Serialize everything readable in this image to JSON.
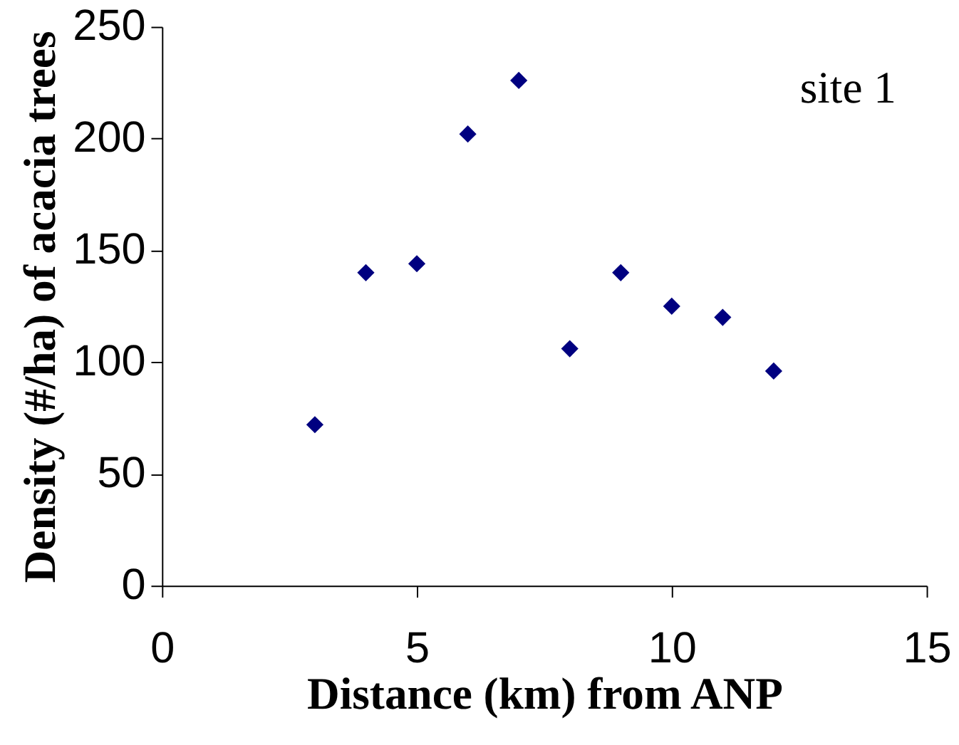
{
  "chart_data": {
    "type": "scatter",
    "xlabel": "Distance (km) from ANP",
    "ylabel": "Density (#/ha) of acacia trees",
    "annotations": [
      "site 1"
    ],
    "x": [
      3,
      4,
      5,
      6,
      7,
      8,
      9,
      10,
      11,
      12
    ],
    "series": [
      {
        "color": "#000080",
        "values": [
          72,
          140,
          144,
          202,
          226,
          106,
          140,
          125,
          120,
          96
        ]
      }
    ],
    "xlim": [
      0,
      15
    ],
    "xticks": [
      0,
      5,
      10,
      15
    ],
    "ylim": [
      0,
      250
    ],
    "yticks": [
      0,
      50,
      100,
      150,
      200,
      250
    ],
    "marker": "diamond",
    "grid": false,
    "legend": false
  }
}
